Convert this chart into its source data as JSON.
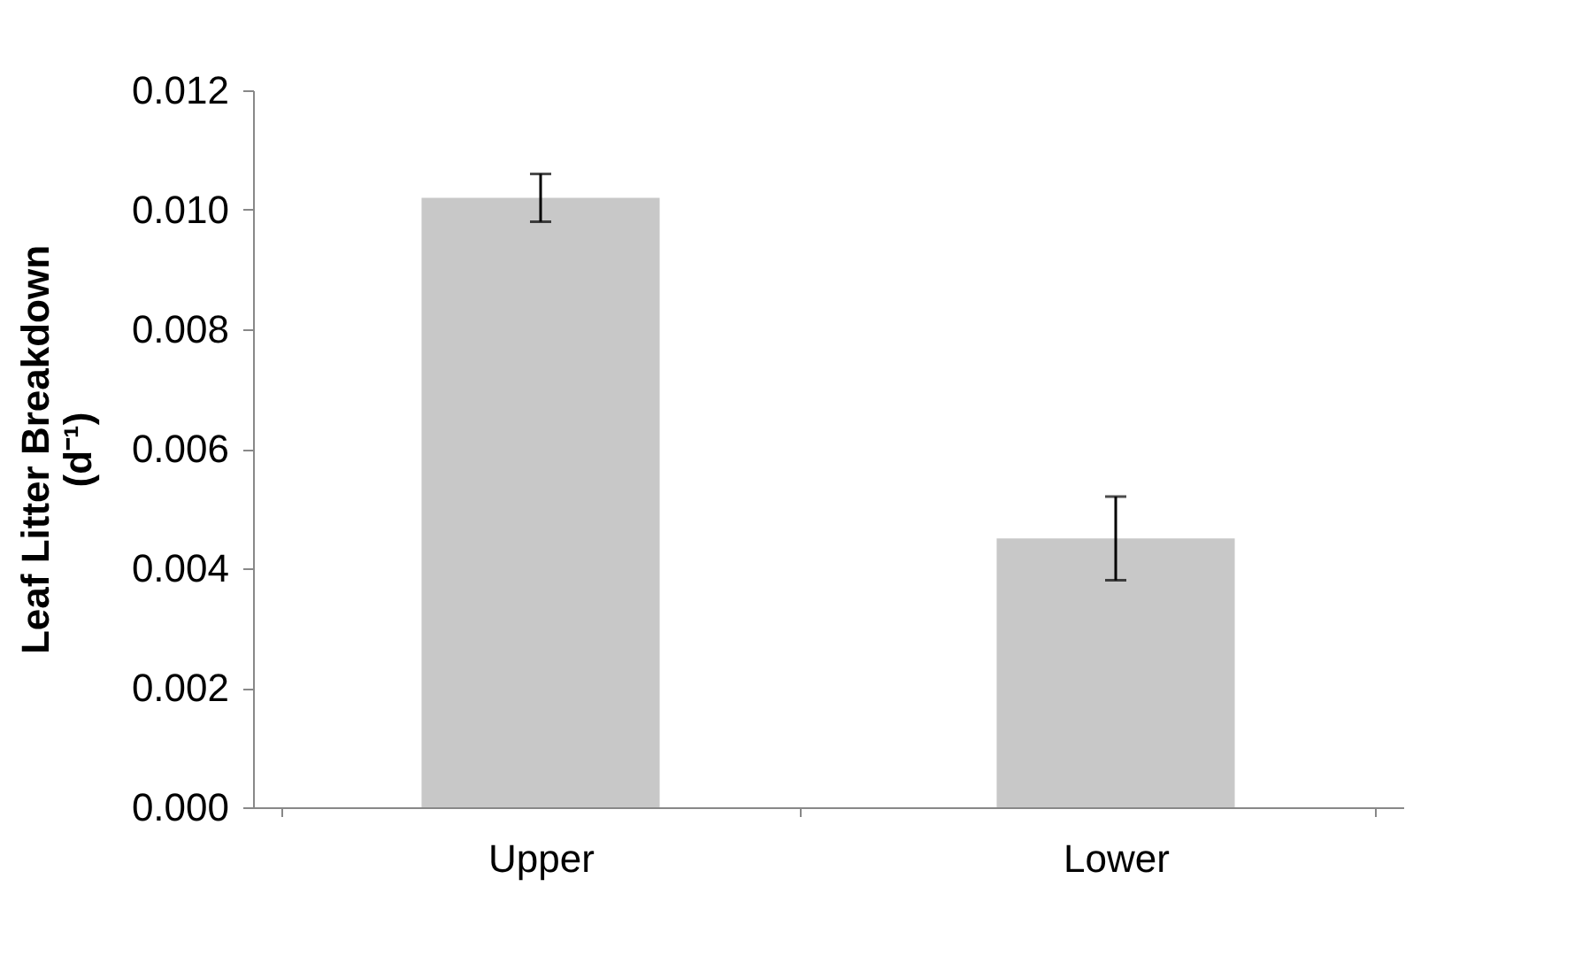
{
  "chart_data": {
    "type": "bar",
    "ylabel": "Leaf Litter Breakdown\n(d⁻¹)",
    "categories": [
      "Upper",
      "Lower"
    ],
    "values": [
      0.0102,
      0.0045
    ],
    "errors": [
      0.0004,
      0.0007
    ],
    "color": "#c8c8c8",
    "ylim": [
      0,
      0.012
    ],
    "yticks": [
      {
        "value": 0,
        "label": "0.000"
      },
      {
        "value": 0.002,
        "label": "0.002"
      },
      {
        "value": 0.004,
        "label": "0.004"
      },
      {
        "value": 0.006,
        "label": "0.006"
      },
      {
        "value": 0.008,
        "label": "0.008"
      },
      {
        "value": 0.01,
        "label": "0.010"
      },
      {
        "value": 0.012,
        "label": "0.012"
      }
    ],
    "grid": false
  }
}
